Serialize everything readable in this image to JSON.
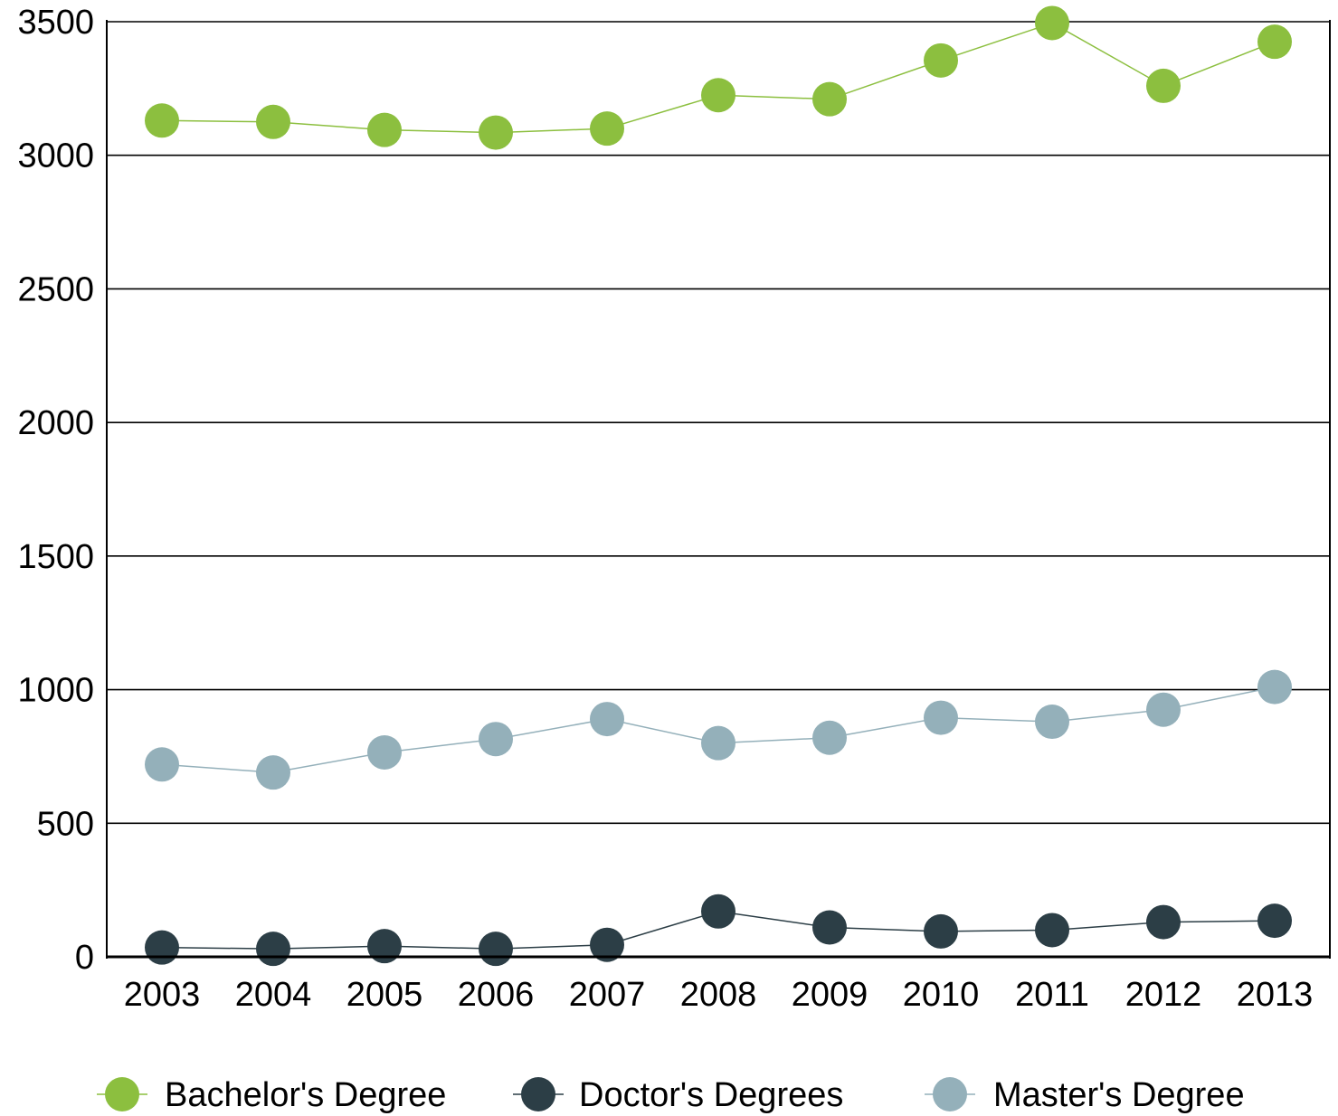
{
  "chart_data": {
    "type": "line",
    "title": "",
    "xlabel": "",
    "ylabel": "",
    "x": [
      "2003",
      "2004",
      "2005",
      "2006",
      "2007",
      "2008",
      "2009",
      "2010",
      "2011",
      "2012",
      "2013"
    ],
    "ylim": [
      0,
      3500
    ],
    "yticks": [
      0,
      500,
      1000,
      1500,
      2000,
      2500,
      3000,
      3500
    ],
    "grid": true,
    "legend_position": "bottom",
    "series": [
      {
        "name": "Bachelor's Degree",
        "color": "#8cbf3f",
        "values": [
          3130,
          3125,
          3095,
          3085,
          3100,
          3225,
          3210,
          3355,
          3495,
          3260,
          3425
        ]
      },
      {
        "name": "Doctor's Degrees",
        "color": "#2c3e46",
        "values": [
          35,
          30,
          40,
          30,
          45,
          170,
          110,
          95,
          100,
          130,
          135
        ]
      },
      {
        "name": "Master's Degree",
        "color": "#94b0ba",
        "values": [
          720,
          690,
          765,
          815,
          890,
          800,
          820,
          895,
          880,
          925,
          1010
        ]
      }
    ]
  }
}
